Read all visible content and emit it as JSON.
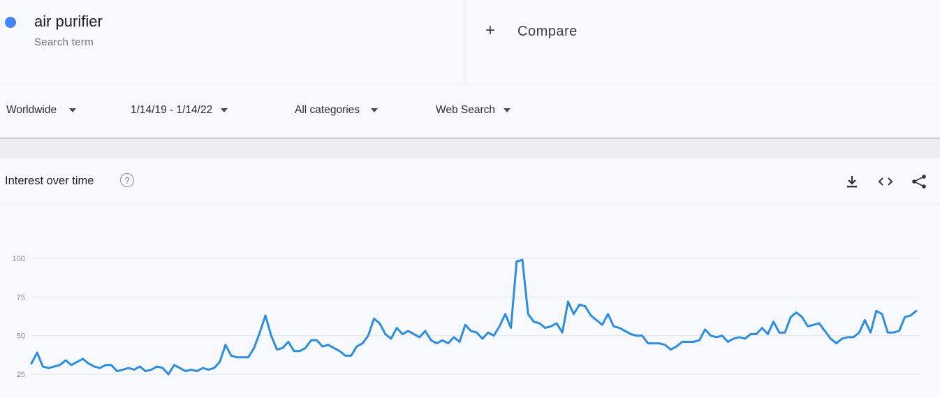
{
  "search_term": {
    "name": "air purifier",
    "subtitle": "Search term",
    "color": "#4285f4"
  },
  "compare": {
    "icon": "plus-icon",
    "label": "Compare"
  },
  "filters": {
    "region": "Worldwide",
    "date_range": "1/14/19 - 1/14/22",
    "category": "All categories",
    "search_type": "Web Search"
  },
  "chart_header": {
    "title": "Interest over time",
    "help_icon": "question-mark-icon",
    "actions": [
      "download-icon",
      "embed-icon",
      "share-icon"
    ]
  },
  "chart_data": {
    "type": "line",
    "title": "",
    "xlabel": "",
    "ylabel": "",
    "y_ticks": [
      25,
      50,
      75,
      100
    ],
    "ylim": [
      25,
      100
    ],
    "grid": true,
    "series": [
      {
        "color": "#2d8ee0",
        "values": [
          32,
          39,
          30,
          29,
          30,
          31,
          34,
          31,
          33,
          35,
          32,
          30,
          29,
          31,
          31,
          27,
          28,
          29,
          28,
          30,
          27,
          28,
          30,
          29,
          25,
          31,
          29,
          27,
          28,
          27,
          29,
          28,
          29,
          33,
          44,
          37,
          36,
          36,
          36,
          42,
          52,
          63,
          50,
          41,
          42,
          46,
          40,
          40,
          42,
          47,
          47,
          43,
          44,
          42,
          40,
          37,
          37,
          43,
          45,
          50,
          61,
          58,
          51,
          48,
          55,
          51,
          53,
          51,
          49,
          53,
          47,
          45,
          47,
          45,
          49,
          46,
          57,
          53,
          52,
          48,
          52,
          50,
          56,
          64,
          55,
          98,
          99,
          64,
          59,
          58,
          55,
          56,
          58,
          52,
          72,
          64,
          70,
          69,
          63,
          60,
          57,
          64,
          56,
          55,
          53,
          51,
          50,
          50,
          45,
          45,
          45,
          44,
          41,
          43,
          46,
          46,
          46,
          47,
          54,
          50,
          49,
          50,
          46,
          48,
          49,
          48,
          51,
          51,
          55,
          51,
          59,
          52,
          52,
          62,
          65,
          62,
          56,
          57,
          58,
          53,
          48,
          45,
          48,
          49,
          49,
          52,
          60,
          52,
          66,
          64,
          52,
          52,
          53,
          62,
          63,
          66
        ]
      }
    ]
  }
}
